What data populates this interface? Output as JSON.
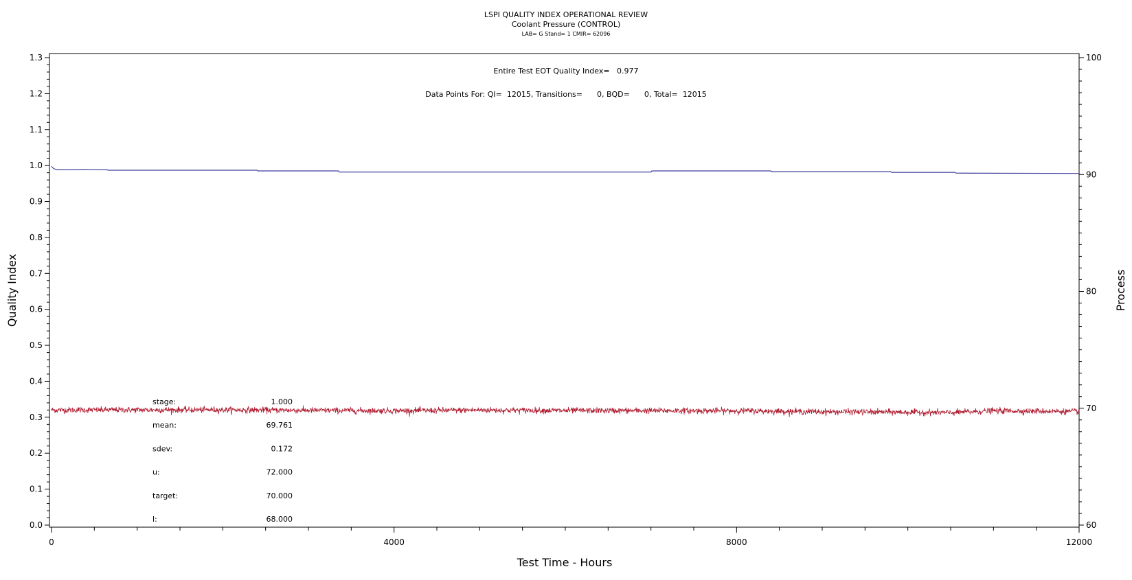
{
  "chart_data": {
    "type": "line",
    "title": "LSPI QUALITY INDEX OPERATIONAL REVIEW",
    "subtitle": "Coolant Pressure (CONTROL)",
    "subtitle2": "LAB= G Stand= 1 CMIR= 62096",
    "xlabel": "Test Time - Hours",
    "ylabel_left": "Quality Index",
    "ylabel_right": "Process",
    "xlim": [
      0,
      12000
    ],
    "ylim_left": [
      0.0,
      1.3
    ],
    "ylim_right": [
      60,
      100
    ],
    "x_ticks": [
      "0",
      "4000",
      "8000",
      "12000"
    ],
    "y_left_ticks": [
      "0.0",
      "0.1",
      "0.2",
      "0.3",
      "0.4",
      "0.5",
      "0.6",
      "0.7",
      "0.8",
      "0.9",
      "1.0",
      "1.1",
      "1.2",
      "1.3"
    ],
    "y_right_ticks": [
      "60",
      "70",
      "80",
      "90",
      "100"
    ],
    "annotations": {
      "eot_text": "Entire Test EOT Quality Index=   0.977",
      "points_text": "Data Points For: QI=  12015, Transitions=      0, BQD=      0, Total=  12015"
    },
    "stats": [
      {
        "label": "stage:",
        "value": "1.000"
      },
      {
        "label": "mean:",
        "value": "69.761"
      },
      {
        "label": "sdev:",
        "value": "0.172"
      },
      {
        "label": "u:",
        "value": "72.000"
      },
      {
        "label": "target:",
        "value": "70.000"
      },
      {
        "label": "l:",
        "value": "68.000"
      }
    ],
    "series": [
      {
        "axis": "left",
        "color": "#3d3d9e",
        "x": [
          0,
          10,
          30,
          60,
          100,
          200,
          400,
          650,
          660,
          2400,
          2410,
          3350,
          3360,
          7000,
          7010,
          8400,
          8410,
          9800,
          9810,
          10550,
          10560,
          12000
        ],
        "y": [
          0.998,
          0.995,
          0.991,
          0.989,
          0.988,
          0.988,
          0.989,
          0.988,
          0.987,
          0.987,
          0.985,
          0.985,
          0.982,
          0.982,
          0.985,
          0.985,
          0.983,
          0.983,
          0.981,
          0.981,
          0.979,
          0.978
        ]
      },
      {
        "axis": "right",
        "color": "#b01e32",
        "mean": 69.761,
        "sdev": 0.172,
        "drift": {
          "x": [
            0,
            2000,
            4000,
            5000,
            6000,
            8000,
            9000,
            10000,
            10500,
            11000,
            12000
          ],
          "y": [
            69.85,
            69.86,
            69.78,
            69.84,
            69.8,
            69.78,
            69.7,
            69.66,
            69.62,
            69.78,
            69.72
          ]
        }
      }
    ]
  }
}
